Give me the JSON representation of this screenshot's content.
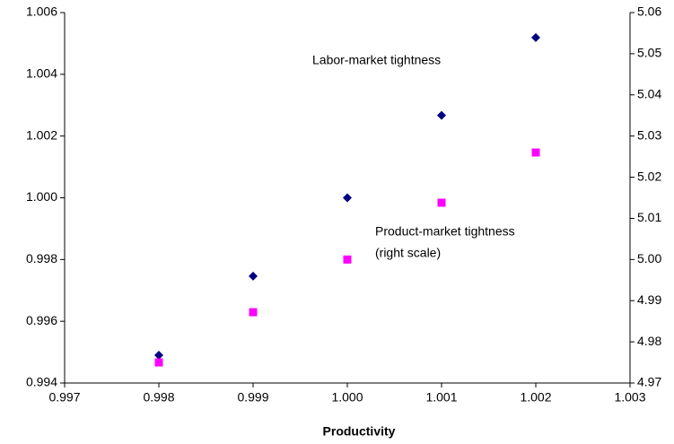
{
  "chart_data": {
    "type": "scatter",
    "x_label": "Productivity",
    "annotations": [
      "Labor-market tightness",
      "Product-market tightness",
      "(right scale)"
    ],
    "xlim": [
      0.997,
      1.003
    ],
    "xticks": [
      0.997,
      0.998,
      0.999,
      {
        "value": 1.0,
        "label": "1.000"
      },
      1.001,
      1.002,
      1.003
    ],
    "ylim": [
      0.994,
      1.006
    ],
    "yticks": [
      0.994,
      0.996,
      0.998,
      {
        "value": 1.0,
        "label": "1.000"
      },
      1.002,
      1.004,
      1.006
    ],
    "y2lim": [
      4.97,
      5.06
    ],
    "y2ticks": [
      4.97,
      4.98,
      4.99,
      {
        "value": 5.0,
        "label": "5.00"
      },
      5.01,
      5.02,
      5.03,
      5.04,
      5.05,
      5.06
    ],
    "series": [
      {
        "color": "#000080",
        "marker": "diamond",
        "x": [
          0.998,
          0.999,
          1.0,
          1.001,
          1.002
        ],
        "values": [
          0.9949,
          0.99746,
          1.0,
          1.00267,
          1.00519
        ]
      },
      {
        "color": "#ff00ff",
        "marker": "square",
        "axis": "y2",
        "x": [
          0.998,
          0.999,
          1.0,
          1.001,
          1.002
        ],
        "values": [
          4.975,
          4.9872,
          5.0,
          5.0138,
          5.026
        ]
      }
    ]
  }
}
